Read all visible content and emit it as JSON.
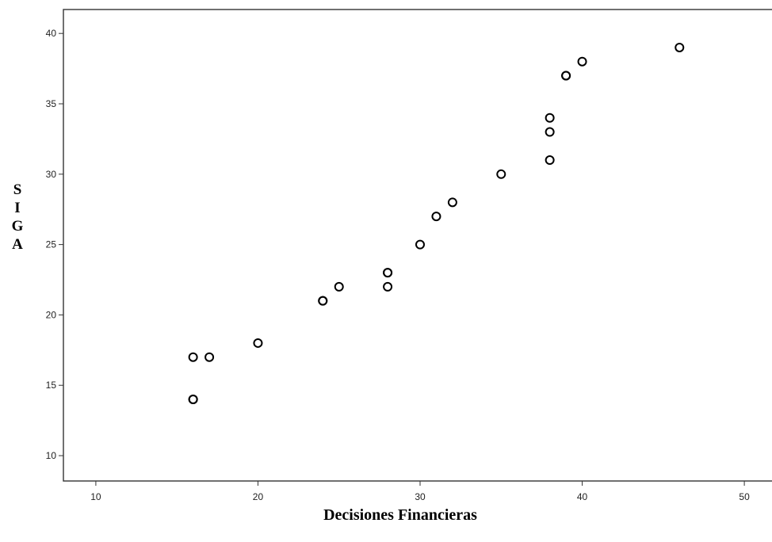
{
  "chart_data": {
    "type": "scatter",
    "title": "",
    "xlabel": "Decisiones Financieras",
    "ylabel": "SIGA",
    "xlim": [
      8,
      52
    ],
    "ylim": [
      8.2,
      41.7
    ],
    "xticks": [
      10,
      20,
      30,
      40,
      50
    ],
    "yticks": [
      10,
      15,
      20,
      25,
      30,
      35,
      40
    ],
    "grid": false,
    "legend": "none",
    "marker": "open-circle",
    "marker_color": "#000000",
    "points": [
      {
        "x": 16,
        "y": 17
      },
      {
        "x": 16,
        "y": 14
      },
      {
        "x": 16,
        "y": 14
      },
      {
        "x": 17,
        "y": 17
      },
      {
        "x": 20,
        "y": 18
      },
      {
        "x": 24,
        "y": 21
      },
      {
        "x": 24,
        "y": 21
      },
      {
        "x": 25,
        "y": 22
      },
      {
        "x": 28,
        "y": 23
      },
      {
        "x": 28,
        "y": 23
      },
      {
        "x": 28,
        "y": 22
      },
      {
        "x": 30,
        "y": 25
      },
      {
        "x": 31,
        "y": 27
      },
      {
        "x": 32,
        "y": 28
      },
      {
        "x": 35,
        "y": 30
      },
      {
        "x": 38,
        "y": 34
      },
      {
        "x": 38,
        "y": 33
      },
      {
        "x": 38,
        "y": 31
      },
      {
        "x": 39,
        "y": 37
      },
      {
        "x": 39,
        "y": 37
      },
      {
        "x": 40,
        "y": 38
      },
      {
        "x": 46,
        "y": 39
      }
    ]
  }
}
